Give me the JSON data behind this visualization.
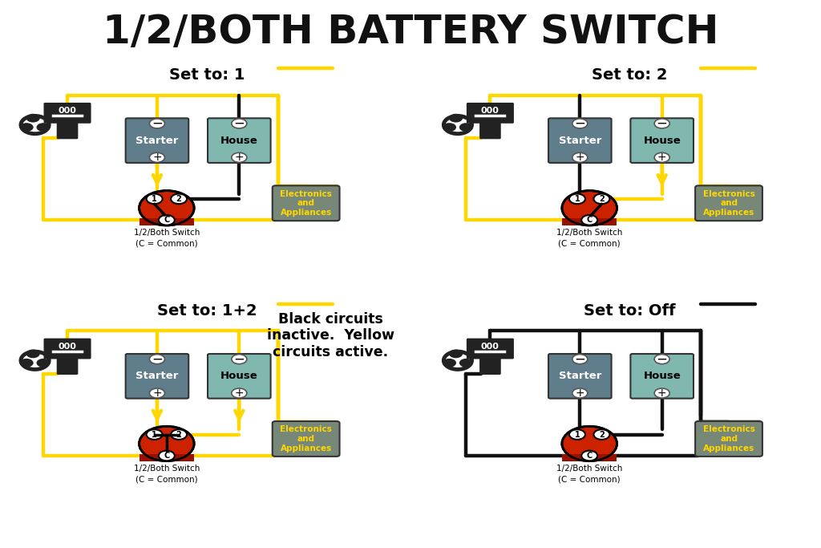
{
  "title": "1/2/BOTH BATTERY SWITCH",
  "title_bg": "#4DD9E8",
  "title_color": "#111111",
  "bg_color": "#ffffff",
  "panel_titles": [
    "Set to: 1",
    "Set to: 2",
    "Set to: 1+2",
    "Set to: Off"
  ],
  "starter_color": "#607d8b",
  "house_color": "#80b8b0",
  "switch_color": "#cc2200",
  "engine_color": "#222222",
  "wire_active": "#FFD700",
  "wire_inactive": "#111111",
  "appliances_bg": "#788878",
  "appliances_text_color": "#FFD700",
  "legend_bg": "#4DD9E8",
  "legend_text": "Black circuits\ninactive.  Yellow\ncircuits active.",
  "switch_label1": "1/2/Both Switch",
  "switch_label2": "(C = Common)"
}
